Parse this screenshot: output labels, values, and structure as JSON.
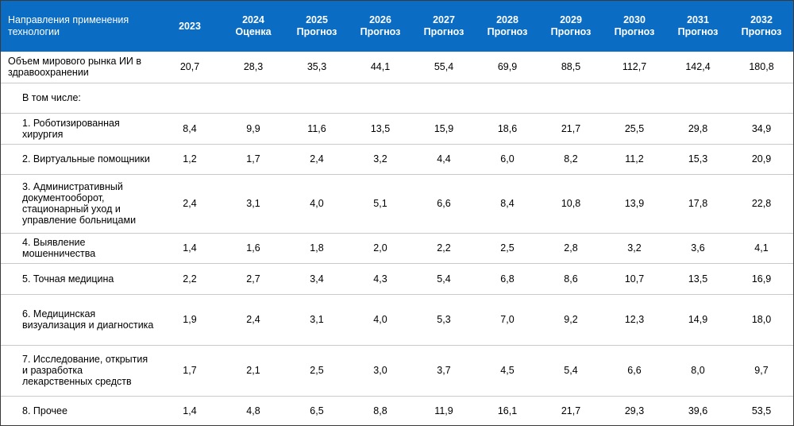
{
  "header": {
    "direction_label": "Направления применения технологии",
    "years": [
      {
        "year": "2023",
        "sub": ""
      },
      {
        "year": "2024",
        "sub": "Оценка"
      },
      {
        "year": "2025",
        "sub": "Прогноз"
      },
      {
        "year": "2026",
        "sub": "Прогноз"
      },
      {
        "year": "2027",
        "sub": "Прогноз"
      },
      {
        "year": "2028",
        "sub": "Прогноз"
      },
      {
        "year": "2029",
        "sub": "Прогноз"
      },
      {
        "year": "2030",
        "sub": "Прогноз"
      },
      {
        "year": "2031",
        "sub": "Прогноз"
      },
      {
        "year": "2032",
        "sub": "Прогноз"
      }
    ]
  },
  "rows": [
    {
      "label": "Объем мирового рынка ИИ в здравоохранении",
      "values": [
        "20,7",
        "28,3",
        "35,3",
        "44,1",
        "55,4",
        "69,9",
        "88,5",
        "112,7",
        "142,4",
        "180,8"
      ]
    },
    {
      "label": "В том числе:",
      "values": [
        "",
        "",
        "",
        "",
        "",
        "",
        "",
        "",
        "",
        ""
      ]
    },
    {
      "label": "1. Роботизированная хирургия",
      "values": [
        "8,4",
        "9,9",
        "11,6",
        "13,5",
        "15,9",
        "18,6",
        "21,7",
        "25,5",
        "29,8",
        "34,9"
      ]
    },
    {
      "label": "2. Виртуальные помощники",
      "values": [
        "1,2",
        "1,7",
        "2,4",
        "3,2",
        "4,4",
        "6,0",
        "8,2",
        "11,2",
        "15,3",
        "20,9"
      ]
    },
    {
      "label": "3. Административный документооборот, стационарный уход и управление больницами",
      "values": [
        "2,4",
        "3,1",
        "4,0",
        "5,1",
        "6,6",
        "8,4",
        "10,8",
        "13,9",
        "17,8",
        "22,8"
      ]
    },
    {
      "label": "4. Выявление мошенничества",
      "values": [
        "1,4",
        "1,6",
        "1,8",
        "2,0",
        "2,2",
        "2,5",
        "2,8",
        "3,2",
        "3,6",
        "4,1"
      ]
    },
    {
      "label": "5. Точная медицина",
      "values": [
        "2,2",
        "2,7",
        "3,4",
        "4,3",
        "5,4",
        "6,8",
        "8,6",
        "10,7",
        "13,5",
        "16,9"
      ]
    },
    {
      "label": "6. Медицинская визуализация и диагностика",
      "values": [
        "1,9",
        "2,4",
        "3,1",
        "4,0",
        "5,3",
        "7,0",
        "9,2",
        "12,3",
        "14,9",
        "18,0"
      ]
    },
    {
      "label": "7. Исследование, открытия и разработка лекарственных средств",
      "values": [
        "1,7",
        "2,1",
        "2,5",
        "3,0",
        "3,7",
        "4,5",
        "5,4",
        "6,6",
        "8,0",
        "9,7"
      ]
    },
    {
      "label": "8. Прочее",
      "values": [
        "1,4",
        "4,8",
        "6,5",
        "8,8",
        "11,9",
        "16,1",
        "21,7",
        "29,3",
        "39,6",
        "53,5"
      ]
    }
  ]
}
